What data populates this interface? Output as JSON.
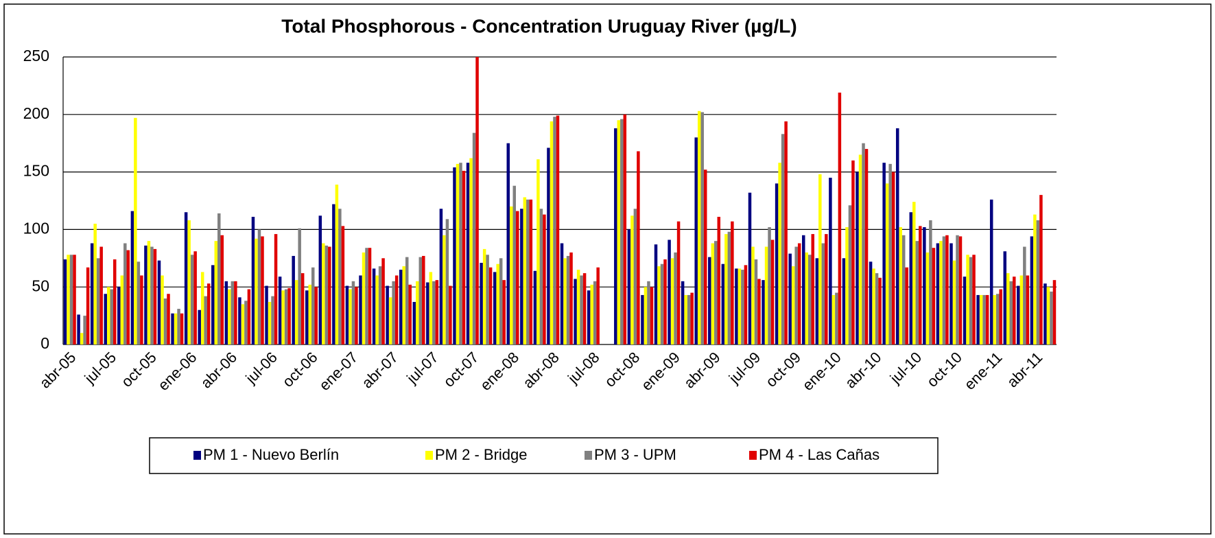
{
  "chart_data": {
    "type": "bar",
    "title": "Total Phosphorous - Concentration Uruguay River (µg/L)",
    "categories": [
      "abr-05",
      null,
      null,
      "jul-05",
      null,
      null,
      "oct-05",
      null,
      null,
      "ene-06",
      null,
      null,
      "abr-06",
      null,
      null,
      "jul-06",
      null,
      null,
      "oct-06",
      null,
      null,
      "ene-07",
      null,
      null,
      "abr-07",
      null,
      null,
      "jul-07",
      null,
      null,
      "oct-07",
      null,
      null,
      "ene-08",
      null,
      null,
      "abr-08",
      null,
      null,
      "jul-08",
      null,
      null,
      "oct-08",
      null,
      null,
      "ene-09",
      null,
      null,
      "abr-09",
      null,
      null,
      "jul-09",
      null,
      null,
      "oct-09",
      null,
      null,
      "ene-10",
      null,
      null,
      "abr-10",
      null,
      null,
      "jul-10",
      null,
      null,
      "oct-10",
      null,
      null,
      "ene-11",
      null,
      null,
      "abr-11",
      null
    ],
    "series": [
      {
        "name": "PM 1 - Nuevo Berlín",
        "color": "#000080",
        "values": [
          74,
          26,
          88,
          44,
          50,
          116,
          86,
          73,
          27,
          115,
          30,
          69,
          55,
          41,
          111,
          51,
          59,
          77,
          47,
          112,
          122,
          51,
          60,
          66,
          51,
          65,
          37,
          54,
          118,
          154,
          158,
          71,
          63,
          175,
          118,
          64,
          171,
          88,
          57,
          47,
          null,
          188,
          100,
          43,
          87,
          91,
          55,
          180,
          76,
          70,
          66,
          132,
          56,
          140,
          79,
          95,
          75,
          145,
          75,
          150,
          72,
          158,
          188,
          115,
          102,
          88,
          88,
          59,
          43,
          126,
          81,
          51,
          94,
          53
        ]
      },
      {
        "name": "PM 2 - Bridge",
        "color": "#ffff00",
        "values": [
          78,
          10,
          105,
          50,
          60,
          197,
          90,
          60,
          27,
          108,
          63,
          90,
          48,
          35,
          92,
          37,
          47,
          56,
          52,
          88,
          139,
          48,
          80,
          60,
          41,
          68,
          55,
          63,
          95,
          157,
          162,
          83,
          70,
          120,
          128,
          161,
          194,
          75,
          65,
          52,
          null,
          195,
          112,
          50,
          68,
          75,
          43,
          203,
          88,
          96,
          66,
          85,
          85,
          158,
          68,
          80,
          148,
          43,
          102,
          165,
          66,
          140,
          102,
          124,
          80,
          90,
          73,
          78,
          43,
          43,
          62,
          60,
          113,
          50
        ]
      },
      {
        "name": "PM 3 - UPM",
        "color": "#808080",
        "values": [
          78,
          25,
          75,
          48,
          88,
          72,
          85,
          40,
          31,
          78,
          42,
          114,
          55,
          38,
          100,
          42,
          48,
          101,
          67,
          86,
          118,
          55,
          84,
          68,
          55,
          76,
          76,
          55,
          109,
          158,
          184,
          78,
          75,
          138,
          126,
          118,
          198,
          77,
          60,
          55,
          null,
          196,
          118,
          55,
          70,
          80,
          43,
          202,
          90,
          98,
          65,
          74,
          102,
          183,
          85,
          78,
          88,
          45,
          121,
          175,
          62,
          157,
          95,
          90,
          108,
          94,
          95,
          76,
          43,
          44,
          55,
          85,
          108,
          46
        ]
      },
      {
        "name": "PM 4 - Las Cañas",
        "color": "#e00000",
        "values": [
          78,
          67,
          85,
          74,
          82,
          60,
          83,
          44,
          27,
          81,
          53,
          95,
          55,
          48,
          94,
          96,
          49,
          62,
          50,
          85,
          103,
          50,
          84,
          75,
          60,
          52,
          77,
          56,
          51,
          151,
          250,
          67,
          56,
          116,
          126,
          113,
          199,
          80,
          62,
          67,
          null,
          200,
          168,
          50,
          74,
          107,
          45,
          152,
          111,
          107,
          69,
          57,
          91,
          194,
          88,
          96,
          96,
          219,
          160,
          170,
          58,
          150,
          67,
          103,
          84,
          95,
          94,
          78,
          43,
          48,
          59,
          60,
          130,
          56
        ]
      }
    ],
    "ylim": [
      0,
      250
    ],
    "yticks": [
      0,
      50,
      100,
      150,
      200,
      250
    ],
    "grid": true,
    "legend": "bottom"
  }
}
